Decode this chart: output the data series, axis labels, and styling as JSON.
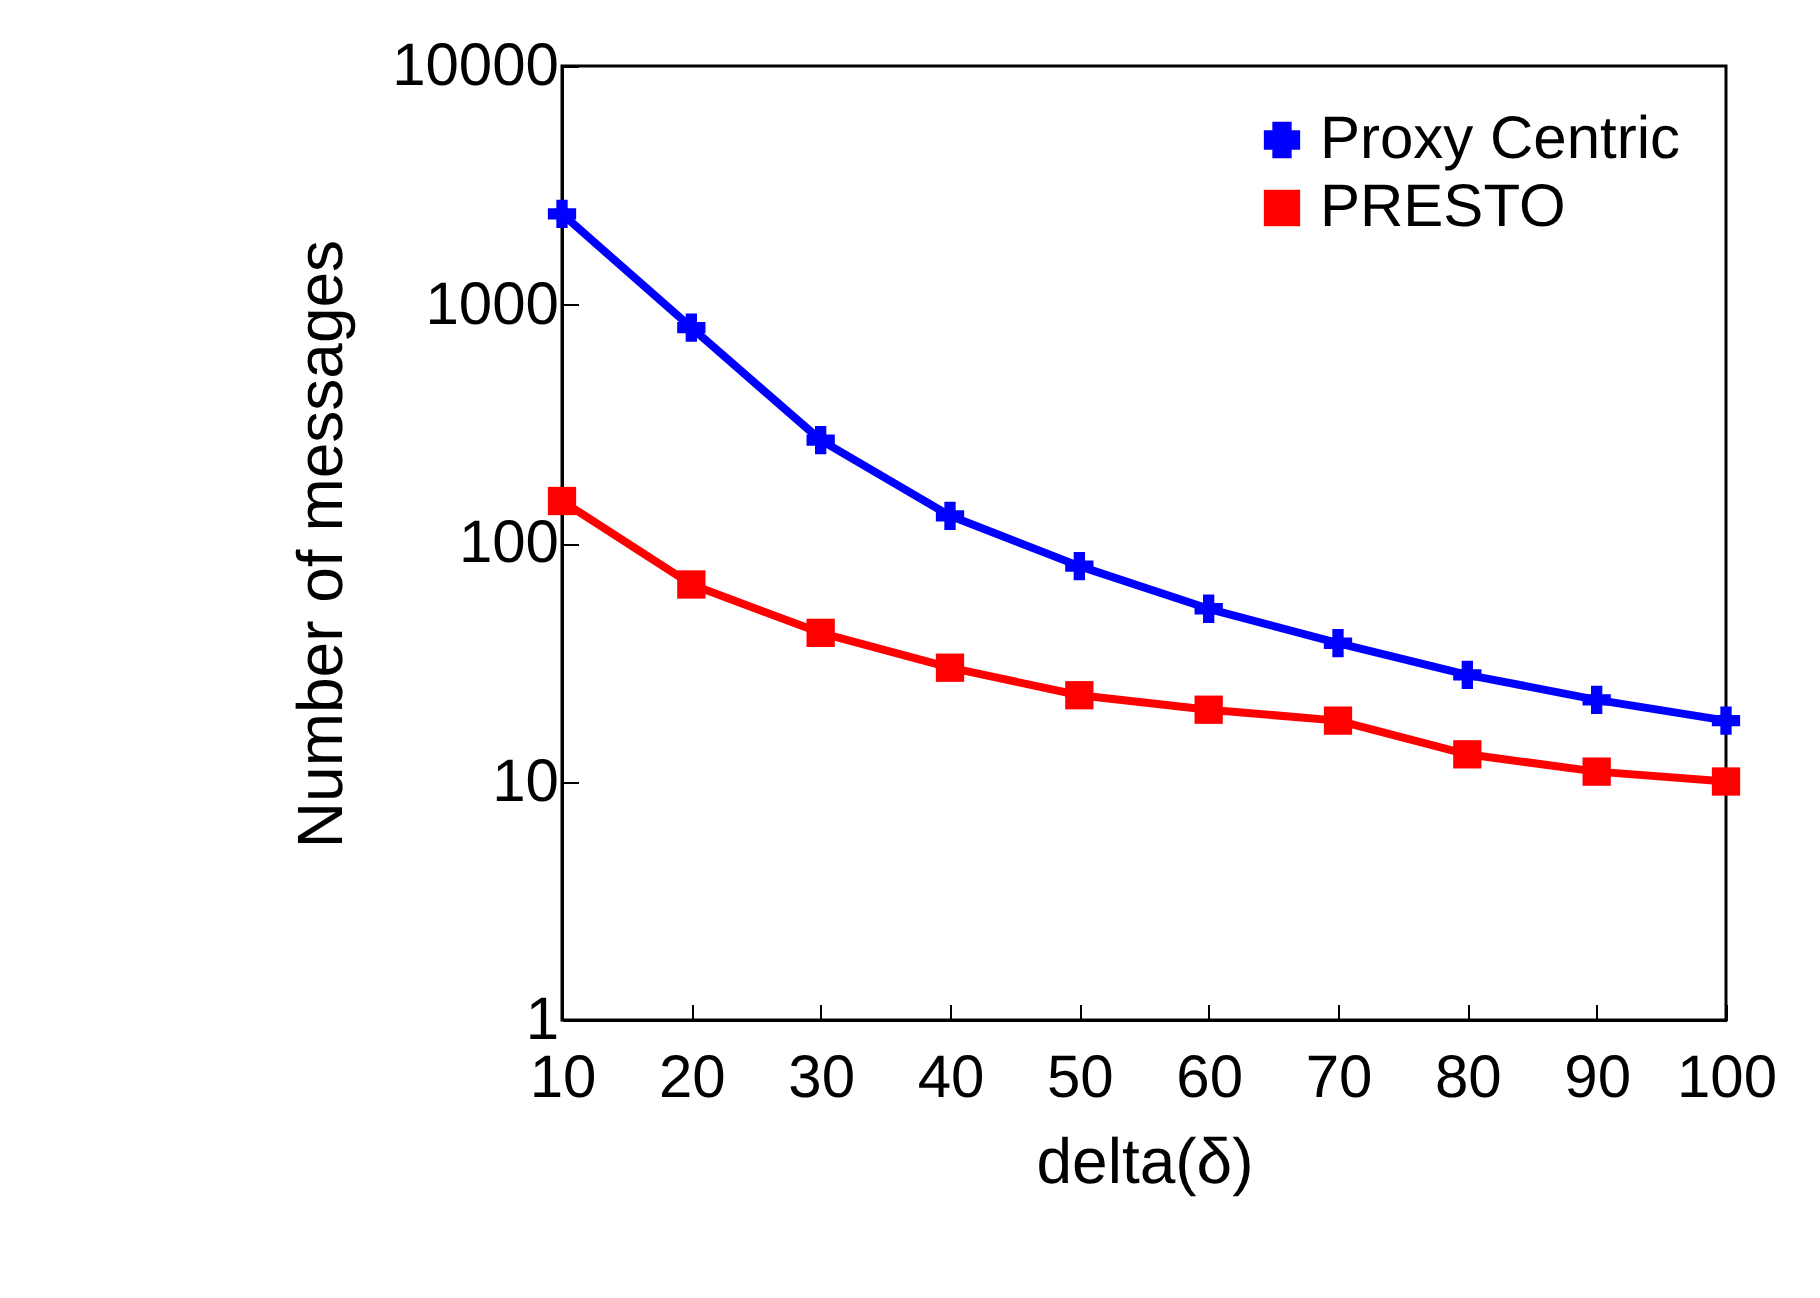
{
  "chart_data": {
    "type": "line",
    "xlabel": "delta(δ)",
    "ylabel": "Number of messages",
    "x": [
      10,
      20,
      30,
      40,
      50,
      60,
      70,
      80,
      90,
      100
    ],
    "series": [
      {
        "name": "Proxy Centric",
        "color": "#0000ff",
        "marker": "cross",
        "values": [
          2400,
          800,
          270,
          130,
          80,
          53,
          38,
          28,
          22,
          18
        ]
      },
      {
        "name": "PRESTO",
        "color": "#ff0000",
        "marker": "square",
        "values": [
          150,
          67,
          42,
          30,
          23,
          20,
          18,
          13,
          11,
          10
        ]
      }
    ],
    "xlim": [
      10,
      100
    ],
    "xticks": [
      10,
      20,
      30,
      40,
      50,
      60,
      70,
      80,
      90,
      100
    ],
    "ylim": [
      1,
      10000
    ],
    "yticks": [
      1,
      10,
      100,
      1000,
      10000
    ],
    "log": "y",
    "grid": false,
    "legend": "top right",
    "line_style": "solid"
  }
}
